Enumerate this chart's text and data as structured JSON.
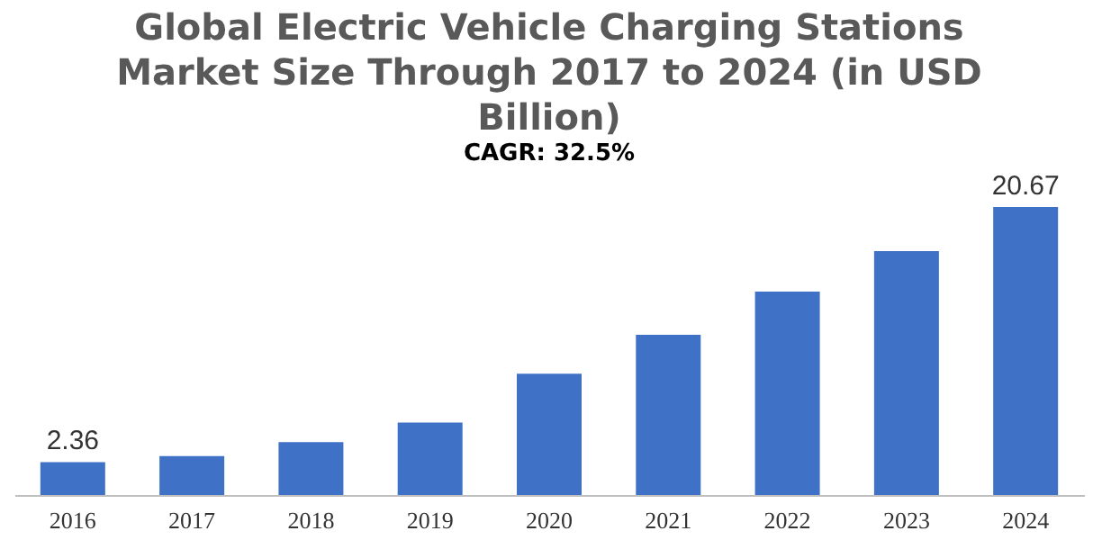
{
  "chart_data": {
    "type": "bar",
    "title": "Global Electric Vehicle Charging Stations Market Size Through 2017 to 2024 (in USD Billion)",
    "subtitle": "CAGR: 32.5%",
    "categories": [
      "2016",
      "2017",
      "2018",
      "2019",
      "2020",
      "2021",
      "2022",
      "2023",
      "2024"
    ],
    "values": [
      2.36,
      2.8,
      3.8,
      5.2,
      8.7,
      11.5,
      14.6,
      17.5,
      20.67
    ],
    "value_labels": [
      "2.36",
      null,
      null,
      null,
      null,
      null,
      null,
      null,
      "20.67"
    ],
    "color": "#3f72c6",
    "grid": false
  }
}
